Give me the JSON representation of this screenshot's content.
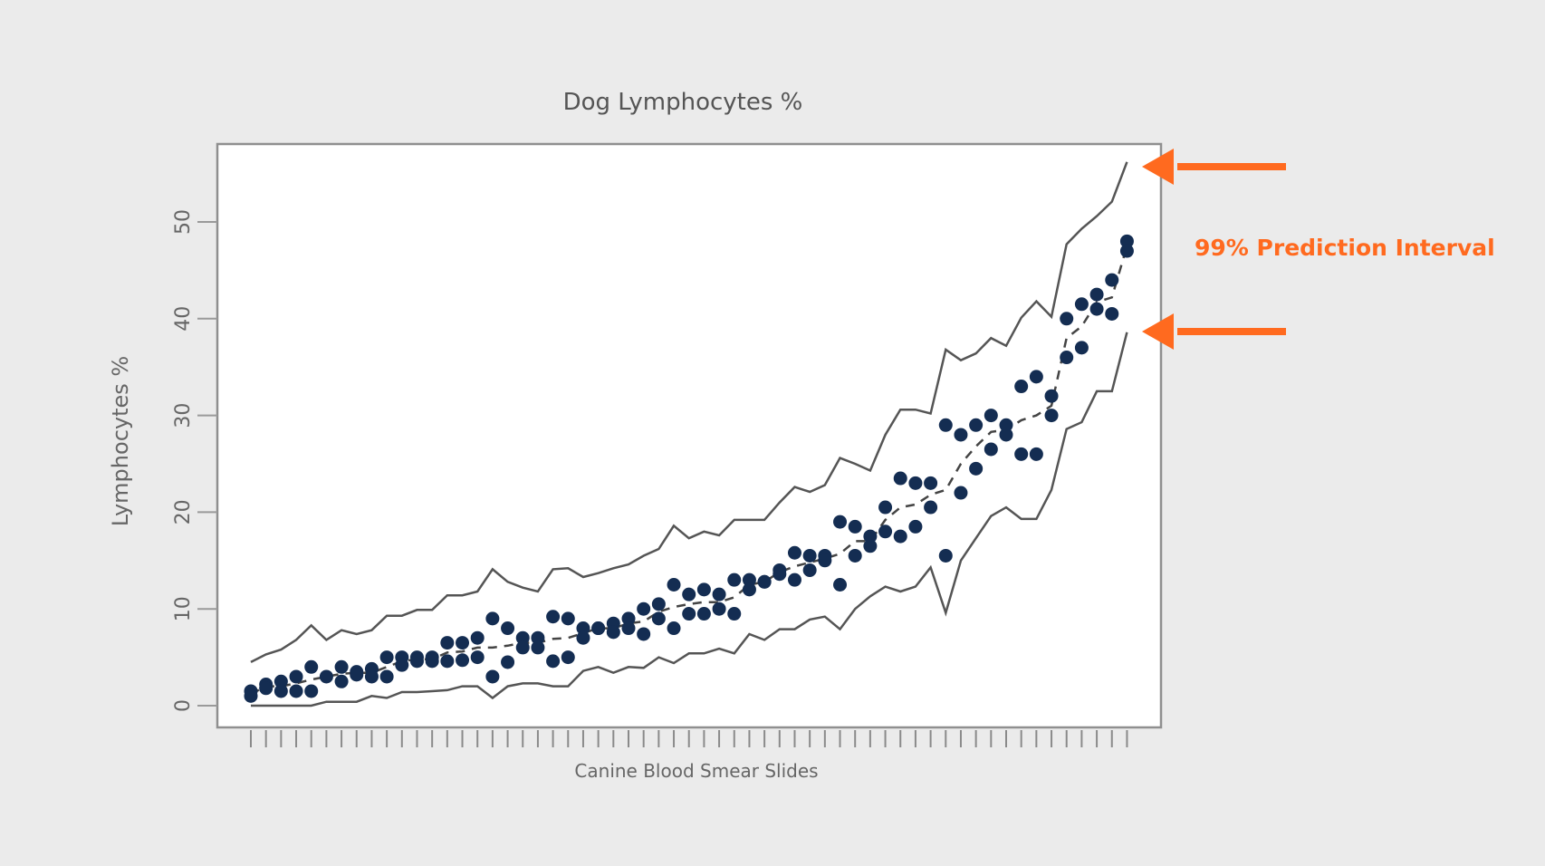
{
  "chart_data": {
    "type": "scatter",
    "title": "Dog Lymphocytes %",
    "xlabel": "Canine Blood Smear Slides",
    "ylabel": "Lymphocytes %",
    "ylim": [
      0,
      57
    ],
    "y_ticks": [
      0,
      10,
      20,
      30,
      40,
      50
    ],
    "y_tick_labels": [
      "0",
      "10",
      "20",
      "30",
      "40",
      "50"
    ],
    "x_tick_count": 59,
    "x_tick_labels": "none",
    "grid": false,
    "series": [
      {
        "name": "Measurements",
        "style": "points",
        "color": "#142d52",
        "points": [
          [
            1,
            1.5
          ],
          [
            1,
            1.0
          ],
          [
            2,
            2.2
          ],
          [
            2,
            1.8
          ],
          [
            3,
            2.5
          ],
          [
            3,
            1.5
          ],
          [
            4,
            3.0
          ],
          [
            4,
            1.5
          ],
          [
            5,
            4.0
          ],
          [
            5,
            1.5
          ],
          [
            6,
            3.0
          ],
          [
            7,
            4.0
          ],
          [
            7,
            2.5
          ],
          [
            8,
            3.5
          ],
          [
            8,
            3.2
          ],
          [
            9,
            3.8
          ],
          [
            9,
            3.0
          ],
          [
            10,
            5.0
          ],
          [
            10,
            3.0
          ],
          [
            11,
            5.0
          ],
          [
            11,
            4.2
          ],
          [
            12,
            5.0
          ],
          [
            12,
            4.6
          ],
          [
            13,
            5.0
          ],
          [
            13,
            4.6
          ],
          [
            14,
            6.5
          ],
          [
            14,
            4.6
          ],
          [
            15,
            6.5
          ],
          [
            15,
            4.7
          ],
          [
            16,
            7.0
          ],
          [
            16,
            5.0
          ],
          [
            17,
            9.0
          ],
          [
            17,
            3.0
          ],
          [
            18,
            8.0
          ],
          [
            18,
            4.5
          ],
          [
            19,
            7.0
          ],
          [
            19,
            6.0
          ],
          [
            20,
            7.0
          ],
          [
            20,
            6.0
          ],
          [
            21,
            9.2
          ],
          [
            21,
            4.6
          ],
          [
            22,
            9.0
          ],
          [
            22,
            5.0
          ],
          [
            23,
            8.0
          ],
          [
            23,
            7.0
          ],
          [
            24,
            8.0
          ],
          [
            24,
            8.0
          ],
          [
            25,
            8.5
          ],
          [
            25,
            7.6
          ],
          [
            26,
            9.0
          ],
          [
            26,
            8.0
          ],
          [
            27,
            10.0
          ],
          [
            27,
            7.4
          ],
          [
            28,
            10.5
          ],
          [
            28,
            9.0
          ],
          [
            29,
            12.5
          ],
          [
            29,
            8.0
          ],
          [
            30,
            11.5
          ],
          [
            30,
            9.5
          ],
          [
            31,
            12.0
          ],
          [
            31,
            9.5
          ],
          [
            32,
            11.5
          ],
          [
            32,
            10.0
          ],
          [
            33,
            13.0
          ],
          [
            33,
            9.5
          ],
          [
            34,
            13.0
          ],
          [
            34,
            12.0
          ],
          [
            35,
            12.8
          ],
          [
            35,
            12.8
          ],
          [
            36,
            14.0
          ],
          [
            36,
            13.6
          ],
          [
            37,
            15.8
          ],
          [
            37,
            13.0
          ],
          [
            38,
            15.5
          ],
          [
            38,
            14.0
          ],
          [
            39,
            15.5
          ],
          [
            39,
            15.0
          ],
          [
            40,
            19.0
          ],
          [
            40,
            12.5
          ],
          [
            41,
            18.5
          ],
          [
            41,
            15.5
          ],
          [
            42,
            17.5
          ],
          [
            42,
            16.5
          ],
          [
            43,
            20.5
          ],
          [
            43,
            18.0
          ],
          [
            44,
            23.5
          ],
          [
            44,
            17.5
          ],
          [
            45,
            23.0
          ],
          [
            45,
            18.5
          ],
          [
            46,
            23.0
          ],
          [
            46,
            20.5
          ],
          [
            47,
            29.0
          ],
          [
            47,
            15.5
          ],
          [
            48,
            28.0
          ],
          [
            48,
            22.0
          ],
          [
            49,
            29.0
          ],
          [
            49,
            24.5
          ],
          [
            50,
            30.0
          ],
          [
            50,
            26.5
          ],
          [
            51,
            29.0
          ],
          [
            51,
            28.0
          ],
          [
            52,
            33.0
          ],
          [
            52,
            26.0
          ],
          [
            53,
            34.0
          ],
          [
            53,
            26.0
          ],
          [
            54,
            32.0
          ],
          [
            54,
            30.0
          ],
          [
            55,
            40.0
          ],
          [
            55,
            36.0
          ],
          [
            56,
            41.5
          ],
          [
            56,
            37.0
          ],
          [
            57,
            42.5
          ],
          [
            57,
            41.0
          ],
          [
            58,
            44.0
          ],
          [
            58,
            40.5
          ],
          [
            59,
            48.0
          ],
          [
            59,
            47.0
          ]
        ]
      },
      {
        "name": "Mean",
        "style": "dashed",
        "color": "#444444",
        "x": [
          1,
          2,
          3,
          4,
          5,
          6,
          7,
          8,
          9,
          10,
          11,
          12,
          13,
          14,
          15,
          16,
          17,
          18,
          19,
          20,
          21,
          22,
          23,
          24,
          25,
          26,
          27,
          28,
          29,
          30,
          31,
          32,
          33,
          34,
          35,
          36,
          37,
          38,
          39,
          40,
          41,
          42,
          43,
          44,
          45,
          46,
          47,
          48,
          49,
          50,
          51,
          52,
          53,
          54,
          55,
          56,
          57,
          58,
          59
        ],
        "values": [
          1.2,
          2.0,
          2.0,
          2.3,
          2.7,
          3.0,
          3.3,
          3.4,
          3.4,
          4.0,
          4.6,
          4.8,
          4.8,
          5.5,
          5.6,
          6.0,
          6.0,
          6.2,
          6.5,
          6.5,
          6.9,
          7.0,
          7.5,
          8.0,
          8.0,
          8.5,
          8.7,
          9.7,
          10.2,
          10.5,
          10.7,
          10.7,
          11.2,
          12.5,
          12.8,
          13.8,
          14.4,
          14.8,
          15.2,
          15.7,
          17.0,
          17.0,
          19.2,
          20.5,
          20.8,
          21.8,
          22.3,
          25.0,
          26.8,
          28.3,
          28.5,
          29.5,
          30.0,
          31.0,
          38.0,
          39.2,
          41.7,
          42.2,
          47.5
        ]
      },
      {
        "name": "Upper 99% PI",
        "style": "line",
        "color": "#555555",
        "x": [
          1,
          2,
          3,
          4,
          5,
          6,
          7,
          8,
          9,
          10,
          11,
          12,
          13,
          14,
          15,
          16,
          17,
          18,
          19,
          20,
          21,
          22,
          23,
          24,
          25,
          26,
          27,
          28,
          29,
          30,
          31,
          32,
          33,
          34,
          35,
          36,
          37,
          38,
          39,
          40,
          41,
          42,
          43,
          44,
          45,
          46,
          47,
          48,
          49,
          50,
          51,
          52,
          53,
          54,
          55,
          56,
          57,
          58,
          59
        ],
        "values": [
          4.5,
          5.3,
          5.8,
          6.8,
          8.3,
          6.8,
          7.8,
          7.4,
          7.8,
          9.3,
          9.3,
          9.9,
          9.9,
          11.4,
          11.4,
          11.8,
          14.1,
          12.8,
          12.2,
          11.8,
          14.1,
          14.2,
          13.3,
          13.7,
          14.2,
          14.6,
          15.5,
          16.2,
          18.6,
          17.3,
          18.0,
          17.6,
          19.2,
          19.2,
          19.2,
          21.0,
          22.6,
          22.1,
          22.8,
          25.6,
          25.0,
          24.3,
          28.0,
          30.6,
          30.6,
          30.2,
          36.8,
          35.7,
          36.4,
          38.0,
          37.2,
          40.1,
          41.8,
          40.2,
          47.7,
          49.3,
          50.6,
          52.1,
          56.2
        ]
      },
      {
        "name": "Lower 99% PI",
        "style": "line",
        "color": "#555555",
        "x": [
          1,
          2,
          3,
          4,
          5,
          6,
          7,
          8,
          9,
          10,
          11,
          12,
          13,
          14,
          15,
          16,
          17,
          18,
          19,
          20,
          21,
          22,
          23,
          24,
          25,
          26,
          27,
          28,
          29,
          30,
          31,
          32,
          33,
          34,
          35,
          36,
          37,
          38,
          39,
          40,
          41,
          42,
          43,
          44,
          45,
          46,
          47,
          48,
          49,
          50,
          51,
          52,
          53,
          54,
          55,
          56,
          57,
          58,
          59
        ],
        "values": [
          0,
          0,
          0,
          0,
          0,
          0.4,
          0.4,
          0.4,
          1.0,
          0.8,
          1.4,
          1.4,
          1.5,
          1.6,
          2.0,
          2.0,
          0.8,
          2.0,
          2.3,
          2.3,
          2.0,
          2.0,
          3.6,
          4.0,
          3.4,
          4.0,
          3.9,
          5.0,
          4.4,
          5.4,
          5.4,
          5.9,
          5.4,
          7.4,
          6.8,
          7.9,
          7.9,
          8.9,
          9.2,
          7.9,
          10.0,
          11.3,
          12.3,
          11.8,
          12.3,
          14.3,
          9.6,
          15.0,
          17.3,
          19.6,
          20.5,
          19.3,
          19.3,
          22.3,
          28.6,
          29.3,
          32.5,
          32.5,
          38.6
        ]
      }
    ],
    "annotations": [
      {
        "text": "99% Prediction Interval",
        "color": "#ff6a1f",
        "arrows": 2,
        "points_to": [
          "upper bound end",
          "lower bound end"
        ]
      }
    ]
  }
}
